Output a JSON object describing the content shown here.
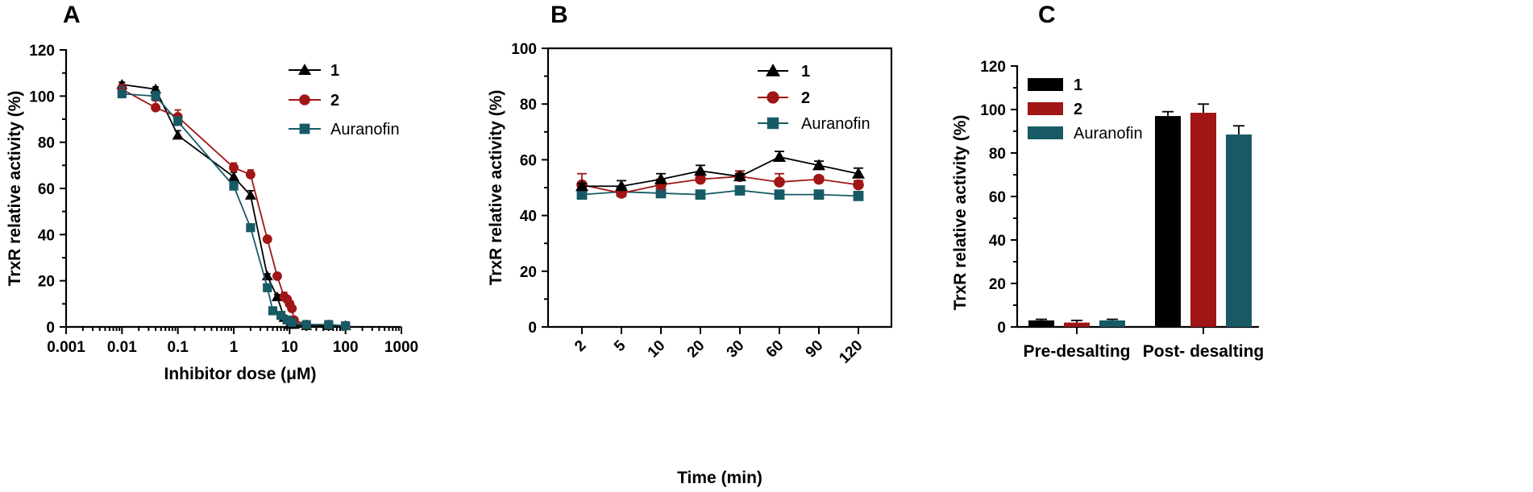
{
  "colors": {
    "c1": "#000000",
    "c2": "#a01515",
    "c3": "#175a66",
    "axis": "#000000"
  },
  "chart_data": [
    {
      "panel": "A",
      "type": "line",
      "xscale": "log",
      "xlabel": "Inhibitor dose (μM)",
      "ylabel": "TrxR relative activity (%)",
      "xlim": [
        0.001,
        1000
      ],
      "ylim": [
        0,
        120
      ],
      "x_ticks": [
        0.001,
        0.01,
        0.1,
        1,
        10,
        100,
        1000
      ],
      "x_tick_labels": [
        "0.001",
        "0.01",
        "0.1",
        "1",
        "10",
        "100",
        "1000"
      ],
      "y_ticks": [
        0,
        20,
        40,
        60,
        80,
        100,
        120
      ],
      "legend_position": "top-right",
      "series": [
        {
          "name": "1",
          "marker": "triangle",
          "color": "#000000",
          "x": [
            0.01,
            0.04,
            0.1,
            1,
            2,
            4,
            6,
            8,
            10,
            12,
            20,
            50,
            100
          ],
          "y": [
            105,
            103,
            83,
            65,
            57,
            22,
            13,
            4,
            1,
            1,
            0.5,
            0.5,
            0.5
          ],
          "err": [
            1,
            1,
            2,
            2,
            2,
            1,
            1,
            1,
            0.5,
            0.5,
            0.5,
            0.5,
            0.5
          ]
        },
        {
          "name": "2",
          "marker": "circle",
          "color": "#a01515",
          "x": [
            0.01,
            0.04,
            0.1,
            1,
            2,
            4,
            6,
            8,
            9,
            10,
            11,
            12,
            20,
            50,
            100
          ],
          "y": [
            103,
            95,
            91,
            69,
            66,
            38,
            22,
            13,
            12,
            10,
            8,
            3,
            1,
            1,
            0.5
          ],
          "err": [
            2,
            3,
            3,
            2,
            2,
            1,
            1,
            2,
            1,
            1,
            1,
            1,
            0.5,
            0.5,
            0.5
          ]
        },
        {
          "name": "Auranofin",
          "marker": "square",
          "color": "#175a66",
          "x": [
            0.01,
            0.04,
            0.1,
            1,
            2,
            4,
            5,
            7,
            9,
            11,
            20,
            50,
            100
          ],
          "y": [
            101,
            100,
            89,
            61,
            43,
            17,
            7,
            5,
            3,
            2,
            1,
            1,
            0.5
          ],
          "err": [
            3,
            2,
            2,
            2,
            1,
            1,
            1,
            1,
            1,
            0.5,
            0.5,
            0.5,
            0.5
          ]
        }
      ]
    },
    {
      "panel": "B",
      "type": "line",
      "xlabel": "Time (min)",
      "ylabel": "TrxR relative activity (%)",
      "categories": [
        "2",
        "5",
        "10",
        "20",
        "30",
        "60",
        "90",
        "120"
      ],
      "ylim": [
        0,
        100
      ],
      "y_ticks": [
        0,
        20,
        40,
        60,
        80,
        100
      ],
      "legend_position": "top-right",
      "series": [
        {
          "name": "1",
          "marker": "triangle",
          "color": "#000000",
          "values": [
            50.5,
            50.5,
            53,
            56,
            54,
            61,
            58,
            55
          ],
          "err": [
            1,
            2,
            2,
            2,
            1,
            2,
            1.5,
            2
          ]
        },
        {
          "name": "2",
          "marker": "circle",
          "color": "#a01515",
          "values": [
            51,
            48,
            51,
            53,
            54,
            52,
            53,
            51
          ],
          "err": [
            4,
            1,
            2,
            2,
            2,
            3,
            1,
            1.5
          ]
        },
        {
          "name": "Auranofin",
          "marker": "square",
          "color": "#175a66",
          "values": [
            47.5,
            48.5,
            48,
            47.5,
            49,
            47.5,
            47.5,
            47
          ],
          "err": [
            1,
            1,
            1,
            1,
            1,
            1,
            1,
            1
          ]
        }
      ]
    },
    {
      "panel": "C",
      "type": "bar",
      "xlabel": "",
      "ylabel": "TrxR relative activity (%)",
      "categories": [
        "Pre-desalting",
        "Post- desalting"
      ],
      "ylim": [
        0,
        120
      ],
      "y_ticks": [
        0,
        20,
        40,
        60,
        80,
        100,
        120
      ],
      "legend_position": "top-left",
      "series": [
        {
          "name": "1",
          "color": "#000000",
          "values": [
            3,
            97
          ],
          "err": [
            0.5,
            2
          ]
        },
        {
          "name": "2",
          "color": "#a01515",
          "values": [
            2,
            98.5
          ],
          "err": [
            1,
            4
          ]
        },
        {
          "name": "Auranofin",
          "color": "#175a66",
          "values": [
            3,
            88.5
          ],
          "err": [
            0.5,
            4
          ]
        }
      ]
    }
  ]
}
